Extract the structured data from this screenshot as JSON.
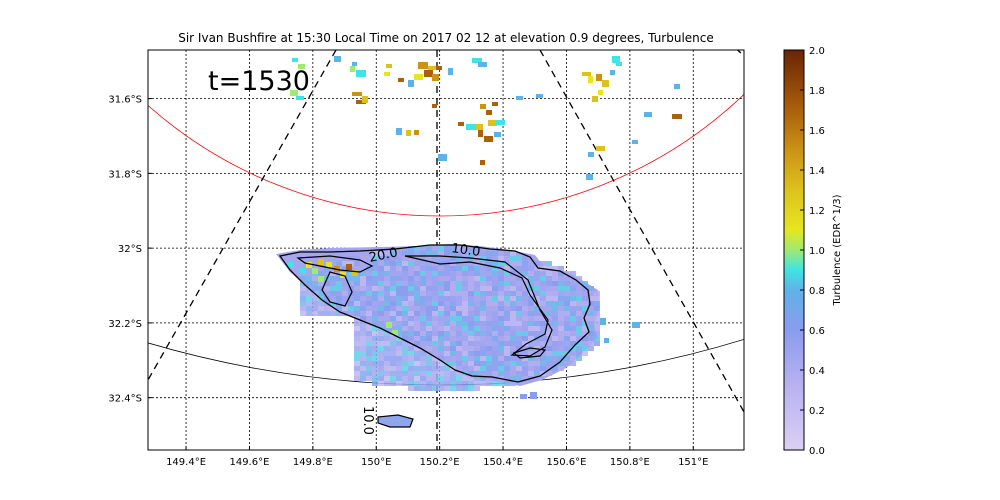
{
  "chart_data": {
    "type": "heatmap",
    "title": "Sir Ivan Bushfire at 15:30 Local Time on 2017 02 12 at elevation 0.9 degrees, Turbulence",
    "annotation": "t=1530",
    "x_ticks": [
      "149.4°E",
      "149.6°E",
      "149.8°E",
      "150°E",
      "150.2°E",
      "150.4°E",
      "150.6°E",
      "150.8°E",
      "151°E"
    ],
    "y_ticks": [
      "31.6°S",
      "31.8°S",
      "32°S",
      "32.2°S",
      "32.4°S"
    ],
    "xlim": [
      149.28,
      151.16
    ],
    "ylim": [
      -32.54,
      -31.47
    ],
    "grid": true,
    "colorbar": {
      "label": "Turbulence (EDR^1/3)",
      "range": [
        0.0,
        2.0
      ],
      "ticks": [
        "0.0",
        "0.2",
        "0.4",
        "0.6",
        "0.8",
        "1.0",
        "1.2",
        "1.4",
        "1.6",
        "1.8",
        "2.0"
      ]
    },
    "contour_labels": [
      "20.0",
      "10.0",
      "10.0"
    ],
    "colors": {
      "range_ring_near": "#ff0000",
      "range_ring_far": "#000000",
      "low": "#dcd0f4",
      "mid": "#3fe4e4",
      "high": "#6b2405"
    }
  }
}
